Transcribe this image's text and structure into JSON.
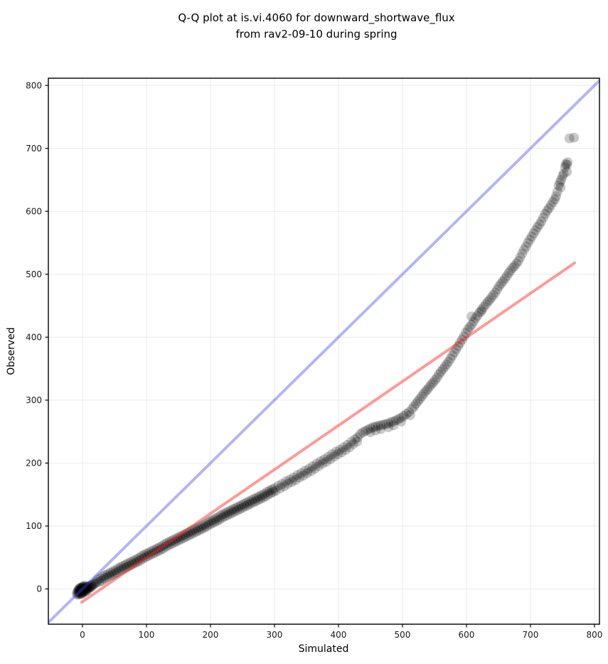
{
  "title": {
    "line1": "Q-Q plot at is.vi.4060 for downward_shortwave_flux",
    "line2": "from rav2-09-10 during spring"
  },
  "chart_data": {
    "type": "scatter",
    "title": "Q-Q plot at is.vi.4060 for downward_shortwave_flux from rav2-09-10 during spring",
    "xlabel": "Simulated",
    "ylabel": "Observed",
    "xlim": [
      -53.3,
      807.8
    ],
    "ylim": [
      -56.0,
      811.5
    ],
    "x_ticks": [
      0,
      100,
      200,
      300,
      400,
      500,
      600,
      700,
      800
    ],
    "y_ticks": [
      0,
      100,
      200,
      300,
      400,
      500,
      600,
      700,
      800
    ],
    "grid": true,
    "legend": "none",
    "colors": {
      "points": "#000000",
      "identity_line": "#4646e6",
      "fit_line": "#ff1e1e",
      "grid": "#ebebeb",
      "spine": "#000000"
    },
    "point_alpha": 0.21,
    "point_radius": 7,
    "identity_line": {
      "from": [
        -53,
        -53
      ],
      "to": [
        810,
        810
      ],
      "opacity": 0.4,
      "width": 4
    },
    "fit_line": {
      "from": [
        -1,
        -21
      ],
      "to": [
        769,
        518
      ],
      "opacity": 0.45,
      "width": 4
    },
    "points": [
      [
        -9,
        -8
      ],
      [
        -8,
        -5
      ],
      [
        -7,
        -9
      ],
      [
        -7,
        -3
      ],
      [
        -6,
        -6
      ],
      [
        -6,
        -1
      ],
      [
        -5,
        -8
      ],
      [
        -5,
        -4
      ],
      [
        -5,
        0
      ],
      [
        -4,
        -6
      ],
      [
        -4,
        -2
      ],
      [
        -4,
        2
      ],
      [
        -3,
        -8
      ],
      [
        -3,
        -4
      ],
      [
        -3,
        0
      ],
      [
        -2,
        -6
      ],
      [
        -2,
        -2
      ],
      [
        -2,
        2
      ],
      [
        -1,
        -8
      ],
      [
        -1,
        -4
      ],
      [
        -1,
        1
      ],
      [
        0,
        -6
      ],
      [
        0,
        -2
      ],
      [
        0,
        3
      ],
      [
        1,
        -4
      ],
      [
        1,
        0
      ],
      [
        1,
        4
      ],
      [
        2,
        -2
      ],
      [
        2,
        2
      ],
      [
        3,
        -5
      ],
      [
        3,
        0
      ],
      [
        3,
        5
      ],
      [
        4,
        -2
      ],
      [
        4,
        3
      ],
      [
        5,
        -4
      ],
      [
        5,
        1
      ],
      [
        6,
        -1
      ],
      [
        6,
        4
      ],
      [
        7,
        1
      ],
      [
        8,
        -2
      ],
      [
        8,
        3
      ],
      [
        9,
        1
      ],
      [
        10,
        4
      ],
      [
        11,
        2
      ],
      [
        12,
        5
      ],
      [
        13,
        3
      ],
      [
        14,
        6
      ],
      [
        15,
        4
      ],
      [
        16,
        7
      ],
      [
        18,
        8
      ],
      [
        20,
        9
      ],
      [
        22,
        11
      ],
      [
        24,
        15
      ],
      [
        26,
        11
      ],
      [
        28,
        17
      ],
      [
        30,
        13
      ],
      [
        32,
        20
      ],
      [
        34,
        16
      ],
      [
        36,
        22
      ],
      [
        38,
        18
      ],
      [
        40,
        24
      ],
      [
        42,
        20
      ],
      [
        44,
        26
      ],
      [
        46,
        22
      ],
      [
        48,
        28
      ],
      [
        50,
        24
      ],
      [
        52,
        30
      ],
      [
        54,
        26
      ],
      [
        56,
        33
      ],
      [
        58,
        29
      ],
      [
        60,
        35
      ],
      [
        62,
        31
      ],
      [
        64,
        37
      ],
      [
        66,
        33
      ],
      [
        68,
        39
      ],
      [
        70,
        35
      ],
      [
        72,
        41
      ],
      [
        74,
        37
      ],
      [
        76,
        43
      ],
      [
        78,
        39
      ],
      [
        80,
        45
      ],
      [
        82,
        41
      ],
      [
        84,
        47
      ],
      [
        86,
        43
      ],
      [
        88,
        49
      ],
      [
        90,
        45
      ],
      [
        92,
        52
      ],
      [
        94,
        48
      ],
      [
        96,
        54
      ],
      [
        98,
        50
      ],
      [
        100,
        56
      ],
      [
        102,
        52
      ],
      [
        104,
        58
      ],
      [
        106,
        54
      ],
      [
        108,
        60
      ],
      [
        110,
        56
      ],
      [
        112,
        62
      ],
      [
        114,
        58
      ],
      [
        116,
        64
      ],
      [
        118,
        60
      ],
      [
        120,
        66
      ],
      [
        122,
        62
      ],
      [
        124,
        68
      ],
      [
        126,
        64
      ],
      [
        128,
        71
      ],
      [
        130,
        67
      ],
      [
        132,
        73
      ],
      [
        134,
        69
      ],
      [
        136,
        75
      ],
      [
        138,
        71
      ],
      [
        140,
        77
      ],
      [
        142,
        73
      ],
      [
        144,
        79
      ],
      [
        146,
        75
      ],
      [
        148,
        81
      ],
      [
        150,
        77
      ],
      [
        152,
        83
      ],
      [
        154,
        79
      ],
      [
        156,
        85
      ],
      [
        158,
        81
      ],
      [
        160,
        87
      ],
      [
        162,
        83
      ],
      [
        164,
        89
      ],
      [
        166,
        85
      ],
      [
        168,
        91
      ],
      [
        170,
        87
      ],
      [
        172,
        93
      ],
      [
        174,
        89
      ],
      [
        176,
        95
      ],
      [
        178,
        91
      ],
      [
        180,
        97
      ],
      [
        182,
        93
      ],
      [
        184,
        99
      ],
      [
        186,
        95
      ],
      [
        188,
        101
      ],
      [
        190,
        97
      ],
      [
        192,
        103
      ],
      [
        194,
        99
      ],
      [
        196,
        106
      ],
      [
        198,
        102
      ],
      [
        200,
        108
      ],
      [
        202,
        104
      ],
      [
        204,
        110
      ],
      [
        206,
        106
      ],
      [
        208,
        112
      ],
      [
        210,
        108
      ],
      [
        212,
        114
      ],
      [
        214,
        110
      ],
      [
        216,
        117
      ],
      [
        218,
        113
      ],
      [
        220,
        119
      ],
      [
        222,
        115
      ],
      [
        224,
        121
      ],
      [
        226,
        117
      ],
      [
        228,
        123
      ],
      [
        230,
        119
      ],
      [
        232,
        125
      ],
      [
        234,
        121
      ],
      [
        236,
        127
      ],
      [
        238,
        123
      ],
      [
        240,
        129
      ],
      [
        242,
        125
      ],
      [
        244,
        131
      ],
      [
        246,
        127
      ],
      [
        248,
        133
      ],
      [
        250,
        129
      ],
      [
        252,
        135
      ],
      [
        254,
        131
      ],
      [
        256,
        137
      ],
      [
        258,
        133
      ],
      [
        260,
        139
      ],
      [
        262,
        135
      ],
      [
        264,
        141
      ],
      [
        266,
        137
      ],
      [
        268,
        143
      ],
      [
        270,
        139
      ],
      [
        272,
        145
      ],
      [
        274,
        141
      ],
      [
        276,
        147
      ],
      [
        278,
        143
      ],
      [
        280,
        149
      ],
      [
        282,
        145
      ],
      [
        284,
        151
      ],
      [
        286,
        147
      ],
      [
        288,
        154
      ],
      [
        290,
        150
      ],
      [
        292,
        156
      ],
      [
        294,
        152
      ],
      [
        296,
        158
      ],
      [
        298,
        154
      ],
      [
        300,
        160
      ],
      [
        302,
        156
      ],
      [
        306,
        164
      ],
      [
        309,
        160
      ],
      [
        312,
        167
      ],
      [
        315,
        163
      ],
      [
        318,
        171
      ],
      [
        321,
        167
      ],
      [
        324,
        174
      ],
      [
        327,
        170
      ],
      [
        330,
        177
      ],
      [
        333,
        173
      ],
      [
        336,
        181
      ],
      [
        339,
        177
      ],
      [
        342,
        184
      ],
      [
        345,
        180
      ],
      [
        348,
        188
      ],
      [
        351,
        184
      ],
      [
        354,
        191
      ],
      [
        357,
        187
      ],
      [
        360,
        195
      ],
      [
        363,
        191
      ],
      [
        366,
        199
      ],
      [
        369,
        195
      ],
      [
        372,
        203
      ],
      [
        375,
        199
      ],
      [
        378,
        206
      ],
      [
        381,
        202
      ],
      [
        384,
        210
      ],
      [
        387,
        206
      ],
      [
        390,
        214
      ],
      [
        393,
        210
      ],
      [
        396,
        218
      ],
      [
        399,
        214
      ],
      [
        402,
        221
      ],
      [
        405,
        217
      ],
      [
        408,
        225
      ],
      [
        411,
        221
      ],
      [
        414,
        229
      ],
      [
        417,
        225
      ],
      [
        420,
        234
      ],
      [
        423,
        230
      ],
      [
        426,
        238
      ],
      [
        429,
        234
      ],
      [
        430,
        241
      ],
      [
        434,
        246
      ],
      [
        438,
        249
      ],
      [
        442,
        251
      ],
      [
        446,
        253
      ],
      [
        450,
        255
      ],
      [
        450,
        249
      ],
      [
        454,
        257
      ],
      [
        458,
        258
      ],
      [
        458,
        252
      ],
      [
        462,
        259
      ],
      [
        466,
        260
      ],
      [
        466,
        254
      ],
      [
        470,
        261
      ],
      [
        474,
        262
      ],
      [
        478,
        263
      ],
      [
        478,
        257
      ],
      [
        482,
        265
      ],
      [
        486,
        266
      ],
      [
        486,
        260
      ],
      [
        490,
        268
      ],
      [
        494,
        270
      ],
      [
        498,
        272
      ],
      [
        498,
        266
      ],
      [
        502,
        275
      ],
      [
        506,
        278
      ],
      [
        510,
        281
      ],
      [
        512,
        276
      ],
      [
        515,
        286
      ],
      [
        518,
        290
      ],
      [
        521,
        294
      ],
      [
        524,
        298
      ],
      [
        527,
        302
      ],
      [
        530,
        306
      ],
      [
        533,
        310
      ],
      [
        536,
        314
      ],
      [
        539,
        317
      ],
      [
        542,
        321
      ],
      [
        545,
        325
      ],
      [
        548,
        328
      ],
      [
        551,
        332
      ],
      [
        554,
        336
      ],
      [
        557,
        341
      ],
      [
        560,
        345
      ],
      [
        563,
        349
      ],
      [
        566,
        353
      ],
      [
        569,
        357
      ],
      [
        572,
        361
      ],
      [
        575,
        366
      ],
      [
        578,
        371
      ],
      [
        581,
        376
      ],
      [
        584,
        381
      ],
      [
        587,
        386
      ],
      [
        590,
        391
      ],
      [
        593,
        396
      ],
      [
        596,
        401
      ],
      [
        599,
        407
      ],
      [
        602,
        412
      ],
      [
        605,
        416
      ],
      [
        608,
        420
      ],
      [
        608,
        433
      ],
      [
        611,
        425
      ],
      [
        614,
        430
      ],
      [
        617,
        434
      ],
      [
        620,
        439
      ],
      [
        623,
        441
      ],
      [
        624,
        444
      ],
      [
        627,
        448
      ],
      [
        630,
        452
      ],
      [
        633,
        456
      ],
      [
        636,
        459
      ],
      [
        639,
        463
      ],
      [
        642,
        467
      ],
      [
        645,
        471
      ],
      [
        648,
        476
      ],
      [
        651,
        481
      ],
      [
        654,
        485
      ],
      [
        657,
        489
      ],
      [
        660,
        493
      ],
      [
        663,
        497
      ],
      [
        666,
        502
      ],
      [
        669,
        506
      ],
      [
        672,
        510
      ],
      [
        675,
        513
      ],
      [
        678,
        517
      ],
      [
        681,
        521
      ],
      [
        684,
        527
      ],
      [
        687,
        533
      ],
      [
        690,
        539
      ],
      [
        693,
        544
      ],
      [
        696,
        550
      ],
      [
        699,
        555
      ],
      [
        702,
        560
      ],
      [
        705,
        565
      ],
      [
        708,
        570
      ],
      [
        711,
        575
      ],
      [
        714,
        579
      ],
      [
        717,
        584
      ],
      [
        720,
        590
      ],
      [
        723,
        596
      ],
      [
        726,
        601
      ],
      [
        729,
        605
      ],
      [
        732,
        610
      ],
      [
        735,
        615
      ],
      [
        738,
        619
      ],
      [
        740,
        624
      ],
      [
        742,
        631
      ],
      [
        744,
        641
      ],
      [
        746,
        646
      ],
      [
        747,
        638
      ],
      [
        748,
        650
      ],
      [
        750,
        656
      ],
      [
        752,
        660
      ],
      [
        754,
        670
      ],
      [
        755,
        675
      ],
      [
        757,
        663
      ],
      [
        757,
        674
      ],
      [
        758,
        678
      ],
      [
        761,
        716
      ],
      [
        768,
        717
      ]
    ]
  }
}
